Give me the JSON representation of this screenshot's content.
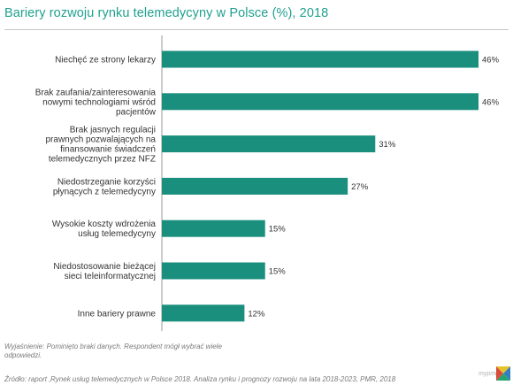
{
  "title": "Bariery rozwoju rynku telemedycyny w Polsce (%), 2018",
  "note": "Wyjaśnienie: Pominięto braki danych. Respondent mógł wybrać wiele odpowiedzi.",
  "source": "Źródło: raport ‚Rynek usług telemedycznych w Polsce 2018. Analiza rynku i prognozy rozwoju na lata 2018-2023, PMR, 2018",
  "brand": "mypmr.pro",
  "colors": {
    "bar": "#1a8f7e",
    "title": "#1fa08f"
  },
  "chart_data": {
    "type": "bar",
    "orientation": "horizontal",
    "categories": [
      [
        "Niechęć ze strony lekarzy"
      ],
      [
        "Brak zaufania/zainteresowania",
        "nowymi technologiami wśród",
        "pacjentów"
      ],
      [
        "Brak jasnych regulacji",
        "prawnych pozwalających na",
        "finansowanie świadczeń",
        "telemedycznych przez NFZ"
      ],
      [
        "Niedostrzeganie korzyści",
        "płynących z telemedycyny"
      ],
      [
        "Wysokie koszty wdrożenia",
        "usług telemedycyny"
      ],
      [
        "Niedostosowanie bieżącej",
        "sieci teleinformatycznej"
      ],
      [
        "Inne bariery prawne"
      ]
    ],
    "values": [
      46,
      46,
      31,
      27,
      15,
      15,
      12
    ],
    "value_labels": [
      "46%",
      "46%",
      "31%",
      "27%",
      "15%",
      "15%",
      "12%"
    ],
    "xlim": [
      0,
      46
    ]
  }
}
